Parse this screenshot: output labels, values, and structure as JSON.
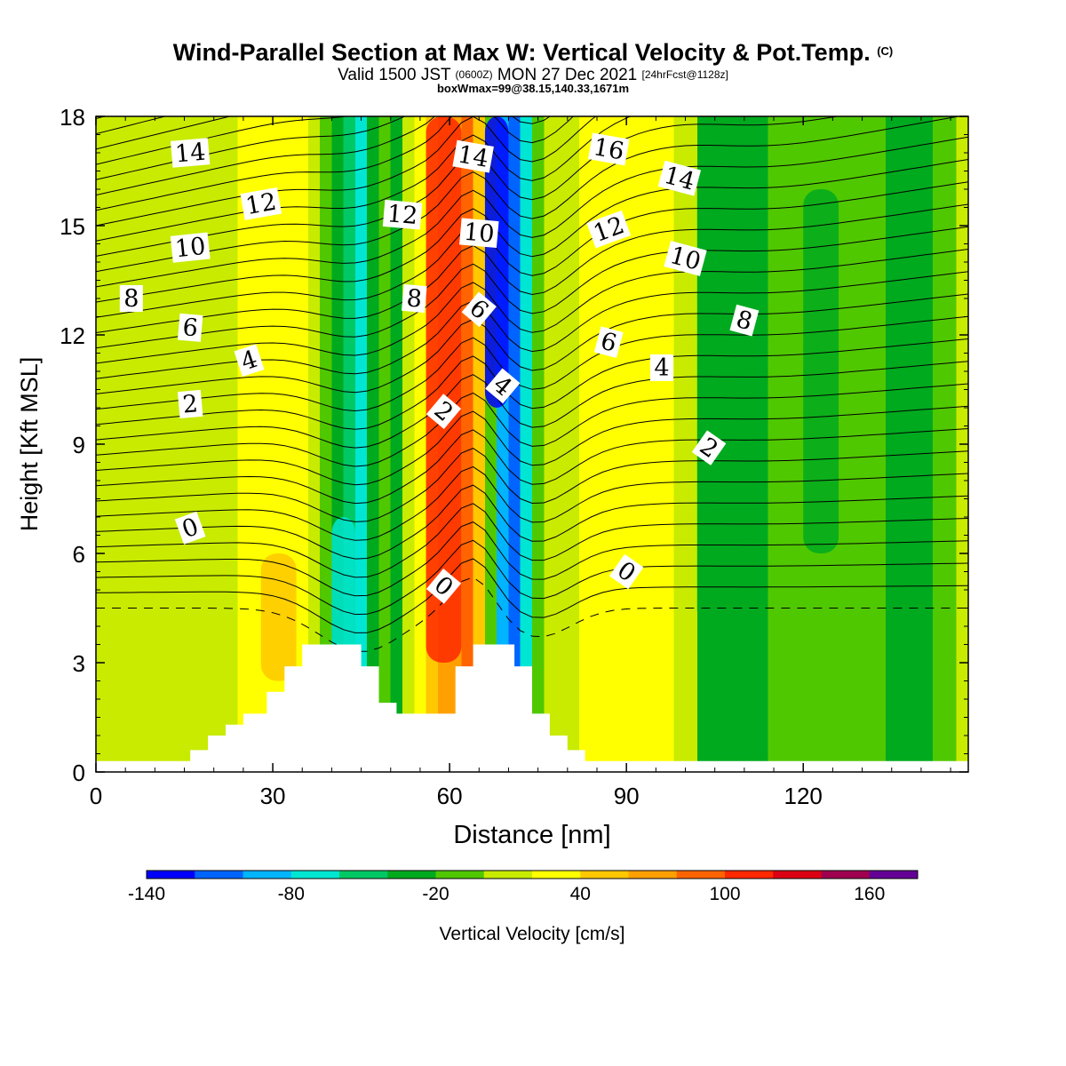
{
  "title": {
    "main": "Wind-Parallel Section at Max W: Vertical Velocity & Pot.Temp.",
    "copyright": "(C)",
    "valid_prefix": "Valid 1500 JST",
    "valid_z": "(0600Z)",
    "valid_date": "MON 27 Dec 2021",
    "forecast": "[24hrFcst@1128z]",
    "box": "boxWmax=99@38.15,140.33,1671m"
  },
  "chart_data": {
    "type": "heatmap",
    "xlabel": "Distance [nm]",
    "ylabel": "Height [Kft MSL]",
    "xlim": [
      0,
      148
    ],
    "ylim": [
      0,
      18
    ],
    "xticks": [
      "0",
      "30",
      "60",
      "90",
      "120"
    ],
    "xtick_values": [
      0,
      30,
      60,
      90,
      120
    ],
    "yticks": [
      "0",
      "3",
      "6",
      "9",
      "12",
      "15",
      "18"
    ],
    "ytick_values": [
      0,
      3,
      6,
      9,
      12,
      15,
      18
    ],
    "colorbar": {
      "label": "Vertical Velocity [cm/s]",
      "ticks": [
        "-140",
        "-80",
        "-20",
        "40",
        "100",
        "160"
      ],
      "tick_values": [
        -140,
        -80,
        -20,
        40,
        100,
        160
      ],
      "range": [
        -140,
        180
      ],
      "colors": [
        "#0000ff",
        "#0064ff",
        "#00b4ff",
        "#00e6d2",
        "#00c864",
        "#00aa1e",
        "#50c800",
        "#c8eb00",
        "#ffff00",
        "#ffc800",
        "#ffa000",
        "#ff6400",
        "#ff2800",
        "#dc0014",
        "#a00050",
        "#640096"
      ]
    },
    "velocity_columns": [
      {
        "x": 0,
        "w": 2
      },
      {
        "x": 4,
        "w": 10
      },
      {
        "x": 8,
        "w": 8
      },
      {
        "x": 12,
        "w": 10
      },
      {
        "x": 16,
        "w": 12
      },
      {
        "x": 20,
        "w": 18
      },
      {
        "x": 24,
        "w": 25
      },
      {
        "x": 28,
        "w": 30
      },
      {
        "x": 32,
        "w": 30
      },
      {
        "x": 36,
        "w": 14
      },
      {
        "x": 38,
        "w": -10
      },
      {
        "x": 40,
        "w": -30
      },
      {
        "x": 42,
        "w": -55
      },
      {
        "x": 44,
        "w": -70
      },
      {
        "x": 46,
        "w": -40
      },
      {
        "x": 48,
        "w": -12
      },
      {
        "x": 50,
        "w": -28
      },
      {
        "x": 52,
        "w": 5
      },
      {
        "x": 54,
        "w": 30
      },
      {
        "x": 56,
        "w": 45
      },
      {
        "x": 58,
        "w": 60
      },
      {
        "x": 60,
        "w": 72
      },
      {
        "x": 62,
        "w": 80
      },
      {
        "x": 64,
        "w": 50
      },
      {
        "x": 66,
        "w": -20
      },
      {
        "x": 68,
        "w": -95
      },
      {
        "x": 70,
        "w": -110
      },
      {
        "x": 72,
        "w": -70
      },
      {
        "x": 74,
        "w": -20
      },
      {
        "x": 76,
        "w": 10
      },
      {
        "x": 78,
        "w": 18
      },
      {
        "x": 82,
        "w": 30
      },
      {
        "x": 86,
        "w": 38
      },
      {
        "x": 90,
        "w": 35
      },
      {
        "x": 94,
        "w": 22
      },
      {
        "x": 98,
        "w": 5
      },
      {
        "x": 102,
        "w": -22
      },
      {
        "x": 106,
        "w": -30
      },
      {
        "x": 110,
        "w": -32
      },
      {
        "x": 114,
        "w": -18
      },
      {
        "x": 118,
        "w": -12
      },
      {
        "x": 122,
        "w": -10
      },
      {
        "x": 126,
        "w": -14
      },
      {
        "x": 130,
        "w": -20
      },
      {
        "x": 134,
        "w": -26
      },
      {
        "x": 138,
        "w": -24
      },
      {
        "x": 142,
        "w": -14
      },
      {
        "x": 146,
        "w": 6
      },
      {
        "x": 148,
        "w": 20
      }
    ],
    "terrain_kft": [
      [
        0,
        0.3
      ],
      [
        16,
        0.3
      ],
      [
        16,
        0.6
      ],
      [
        19,
        0.6
      ],
      [
        19,
        1.0
      ],
      [
        22,
        1.0
      ],
      [
        22,
        1.3
      ],
      [
        25,
        1.3
      ],
      [
        25,
        1.6
      ],
      [
        29,
        1.6
      ],
      [
        29,
        2.2
      ],
      [
        32,
        2.2
      ],
      [
        32,
        2.9
      ],
      [
        35,
        2.9
      ],
      [
        35,
        3.5
      ],
      [
        45,
        3.5
      ],
      [
        45,
        2.9
      ],
      [
        48,
        2.9
      ],
      [
        48,
        1.9
      ],
      [
        51,
        1.9
      ],
      [
        51,
        1.6
      ],
      [
        61,
        1.6
      ],
      [
        61,
        2.9
      ],
      [
        64,
        2.9
      ],
      [
        64,
        3.5
      ],
      [
        71,
        3.5
      ],
      [
        71,
        2.9
      ],
      [
        74,
        2.9
      ],
      [
        74,
        1.6
      ],
      [
        77,
        1.6
      ],
      [
        77,
        1.0
      ],
      [
        80,
        1.0
      ],
      [
        80,
        0.6
      ],
      [
        83,
        0.6
      ],
      [
        83,
        0.3
      ],
      [
        148,
        0.3
      ]
    ],
    "theta_labels": [
      {
        "text": "14",
        "x": 16,
        "y": 17.0,
        "rot": -5
      },
      {
        "text": "12",
        "x": 28,
        "y": 15.6,
        "rot": -10
      },
      {
        "text": "10",
        "x": 16,
        "y": 14.4,
        "rot": -6
      },
      {
        "text": "8",
        "x": 6,
        "y": 13.0,
        "rot": 0
      },
      {
        "text": "6",
        "x": 16,
        "y": 12.2,
        "rot": 5
      },
      {
        "text": "4",
        "x": 26,
        "y": 11.3,
        "rot": -18
      },
      {
        "text": "2",
        "x": 16,
        "y": 10.1,
        "rot": -5
      },
      {
        "text": "0",
        "x": 16,
        "y": 6.7,
        "rot": -20
      },
      {
        "text": "12",
        "x": 52,
        "y": 15.3,
        "rot": 5
      },
      {
        "text": "8",
        "x": 54,
        "y": 13.0,
        "rot": 5
      },
      {
        "text": "14",
        "x": 64,
        "y": 16.9,
        "rot": 10
      },
      {
        "text": "10",
        "x": 65,
        "y": 14.8,
        "rot": 5
      },
      {
        "text": "6",
        "x": 65,
        "y": 12.7,
        "rot": 40
      },
      {
        "text": "4",
        "x": 69,
        "y": 10.6,
        "rot": 40
      },
      {
        "text": "2",
        "x": 59,
        "y": 9.9,
        "rot": 40
      },
      {
        "text": "0",
        "x": 59,
        "y": 5.1,
        "rot": 40
      },
      {
        "text": "16",
        "x": 87,
        "y": 17.1,
        "rot": 10
      },
      {
        "text": "12",
        "x": 87,
        "y": 14.9,
        "rot": -20
      },
      {
        "text": "14",
        "x": 99,
        "y": 16.3,
        "rot": 15
      },
      {
        "text": "10",
        "x": 100,
        "y": 14.1,
        "rot": 15
      },
      {
        "text": "8",
        "x": 110,
        "y": 12.4,
        "rot": 15
      },
      {
        "text": "6",
        "x": 87,
        "y": 11.8,
        "rot": 15
      },
      {
        "text": "4",
        "x": 96,
        "y": 11.1,
        "rot": 0
      },
      {
        "text": "2",
        "x": 104,
        "y": 8.9,
        "rot": 35
      },
      {
        "text": "0",
        "x": 90,
        "y": 5.5,
        "rot": 35
      }
    ]
  }
}
